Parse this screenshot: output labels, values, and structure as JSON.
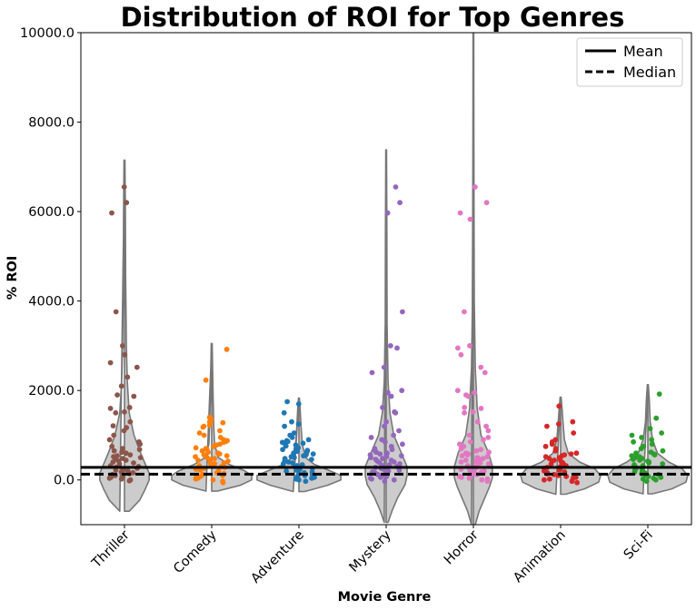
{
  "chart_data": {
    "type": "violin",
    "title": "Distribution of ROI for Top Genres",
    "xlabel": "Movie Genre",
    "ylabel": "% ROI",
    "ylim": [
      -1000,
      10000
    ],
    "yticks": [
      0,
      2000,
      4000,
      6000,
      8000,
      10000
    ],
    "ytick_labels": [
      "0.0",
      "2000.0",
      "4000.0",
      "6000.0",
      "8000.0",
      "10000.0"
    ],
    "categories": [
      "Thriller",
      "Comedy",
      "Adventure",
      "Mystery",
      "Horror",
      "Animation",
      "Sci-Fi"
    ],
    "reference_lines": [
      {
        "name": "Mean",
        "value": 280,
        "style": "solid",
        "color": "#000000"
      },
      {
        "name": "Median",
        "value": 130,
        "style": "dashed",
        "color": "#000000"
      }
    ],
    "legend_position": "top-right",
    "series": [
      {
        "category": "Thriller",
        "color": "#8c564b",
        "violin": {
          "min": -700,
          "max": 7150,
          "shape": [
            [
              -700,
              0.05
            ],
            [
              -450,
              0.16
            ],
            [
              -200,
              0.22
            ],
            [
              0,
              0.26
            ],
            [
              150,
              0.26
            ],
            [
              350,
              0.22
            ],
            [
              600,
              0.17
            ],
            [
              1000,
              0.1
            ],
            [
              1500,
              0.05
            ],
            [
              2200,
              0.03
            ],
            [
              3000,
              0.02
            ],
            [
              4500,
              0.012
            ],
            [
              6000,
              0.01
            ],
            [
              7150,
              0.005
            ]
          ]
        },
        "points": [
          6550,
          6200,
          5970,
          3760,
          3000,
          2800,
          2620,
          2520,
          2300,
          2100,
          1900,
          1870,
          1620,
          1600,
          1520,
          1500,
          1300,
          1210,
          1170,
          1100,
          1000,
          900,
          850,
          800,
          750,
          700,
          680,
          650,
          620,
          600,
          560,
          540,
          520,
          500,
          480,
          460,
          440,
          420,
          400,
          380,
          360,
          340,
          320,
          300,
          280,
          260,
          240,
          220,
          200,
          180,
          160,
          140,
          120,
          100,
          80,
          60,
          40,
          20,
          0,
          -20
        ]
      },
      {
        "category": "Comedy",
        "color": "#ff7f0e",
        "violin": {
          "min": -250,
          "max": 3050,
          "shape": [
            [
              -250,
              0.06
            ],
            [
              -120,
              0.3
            ],
            [
              0,
              0.42
            ],
            [
              100,
              0.42
            ],
            [
              200,
              0.35
            ],
            [
              350,
              0.18
            ],
            [
              500,
              0.07
            ],
            [
              800,
              0.03
            ],
            [
              1200,
              0.022
            ],
            [
              1800,
              0.015
            ],
            [
              2500,
              0.01
            ],
            [
              3050,
              0.005
            ]
          ]
        },
        "points": [
          2920,
          2230,
          1400,
          1350,
          1300,
          1280,
          1250,
          1220,
          1200,
          1180,
          1100,
          1050,
          1000,
          950,
          900,
          880,
          860,
          840,
          800,
          780,
          750,
          720,
          700,
          680,
          650,
          620,
          600,
          580,
          560,
          540,
          520,
          500,
          480,
          460,
          440,
          420,
          400,
          380,
          360,
          340,
          320,
          300,
          280,
          260,
          240,
          220,
          200,
          180,
          160,
          140,
          120,
          100,
          80,
          60,
          40,
          20,
          0,
          -30,
          -60
        ]
      },
      {
        "category": "Adventure",
        "color": "#1f77b4",
        "violin": {
          "min": -260,
          "max": 1830,
          "shape": [
            [
              -260,
              0.06
            ],
            [
              -120,
              0.3
            ],
            [
              0,
              0.44
            ],
            [
              100,
              0.44
            ],
            [
              200,
              0.33
            ],
            [
              350,
              0.16
            ],
            [
              500,
              0.07
            ],
            [
              800,
              0.035
            ],
            [
              1200,
              0.022
            ],
            [
              1600,
              0.012
            ],
            [
              1830,
              0.005
            ]
          ]
        },
        "points": [
          1750,
          1700,
          1500,
          1300,
          1250,
          1200,
          1050,
          1000,
          950,
          900,
          880,
          860,
          840,
          820,
          800,
          780,
          760,
          720,
          700,
          680,
          660,
          640,
          620,
          600,
          580,
          560,
          540,
          520,
          500,
          480,
          460,
          440,
          420,
          400,
          380,
          360,
          340,
          320,
          300,
          280,
          260,
          240,
          220,
          200,
          180,
          160,
          140,
          120,
          100,
          80,
          60,
          40,
          20,
          0,
          -30
        ]
      },
      {
        "category": "Mystery",
        "color": "#9467bd",
        "violin": {
          "min": -950,
          "max": 7380,
          "shape": [
            [
              -950,
              0.02
            ],
            [
              -700,
              0.06
            ],
            [
              -400,
              0.12
            ],
            [
              -100,
              0.2
            ],
            [
              100,
              0.22
            ],
            [
              300,
              0.22
            ],
            [
              600,
              0.16
            ],
            [
              1000,
              0.08
            ],
            [
              1500,
              0.04
            ],
            [
              2200,
              0.02
            ],
            [
              3500,
              0.01
            ],
            [
              5500,
              0.008
            ],
            [
              7380,
              0.004
            ]
          ]
        },
        "points": [
          6550,
          6200,
          5970,
          3760,
          3000,
          2950,
          2520,
          2400,
          2000,
          1950,
          1870,
          1620,
          1520,
          1500,
          1300,
          1200,
          1100,
          1000,
          950,
          900,
          850,
          800,
          750,
          700,
          680,
          650,
          620,
          600,
          580,
          560,
          540,
          520,
          500,
          480,
          460,
          440,
          420,
          400,
          380,
          360,
          340,
          320,
          300,
          280,
          260,
          240,
          220,
          200,
          180,
          160,
          140,
          120,
          100,
          80,
          60,
          40,
          20,
          0,
          -30
        ]
      },
      {
        "category": "Horror",
        "color": "#e377c2",
        "violin": {
          "min": -1000,
          "max": 10000,
          "shape": [
            [
              -1000,
              0.02
            ],
            [
              -700,
              0.06
            ],
            [
              -400,
              0.12
            ],
            [
              -150,
              0.17
            ],
            [
              50,
              0.2
            ],
            [
              300,
              0.2
            ],
            [
              600,
              0.16
            ],
            [
              1000,
              0.08
            ],
            [
              1600,
              0.04
            ],
            [
              2500,
              0.02
            ],
            [
              4000,
              0.01
            ],
            [
              6000,
              0.007
            ],
            [
              8000,
              0.005
            ],
            [
              10000,
              0.004
            ]
          ]
        },
        "points": [
          6550,
          6200,
          5970,
          5830,
          3760,
          3000,
          2950,
          2800,
          2520,
          2400,
          2000,
          1950,
          1900,
          1870,
          1620,
          1600,
          1520,
          1500,
          1300,
          1200,
          1100,
          1000,
          950,
          900,
          850,
          800,
          750,
          700,
          680,
          650,
          620,
          600,
          580,
          560,
          540,
          520,
          500,
          480,
          460,
          440,
          420,
          400,
          380,
          360,
          340,
          320,
          300,
          280,
          260,
          240,
          220,
          200,
          180,
          160,
          140,
          120,
          100,
          80,
          60,
          40,
          20,
          0,
          -30
        ]
      },
      {
        "category": "Animation",
        "color": "#d62728",
        "violin": {
          "min": -320,
          "max": 1850,
          "shape": [
            [
              -320,
              0.05
            ],
            [
              -200,
              0.25
            ],
            [
              -50,
              0.4
            ],
            [
              100,
              0.42
            ],
            [
              250,
              0.36
            ],
            [
              400,
              0.2
            ],
            [
              600,
              0.08
            ],
            [
              900,
              0.04
            ],
            [
              1300,
              0.025
            ],
            [
              1600,
              0.015
            ],
            [
              1850,
              0.005
            ]
          ]
        },
        "points": [
          1650,
          1300,
          1250,
          1200,
          1050,
          900,
          850,
          800,
          750,
          700,
          650,
          600,
          580,
          560,
          540,
          520,
          500,
          480,
          460,
          440,
          420,
          400,
          380,
          360,
          340,
          320,
          300,
          280,
          260,
          240,
          220,
          200,
          180,
          160,
          140,
          120,
          100,
          80,
          60,
          40,
          20,
          0,
          -30,
          -60
        ]
      },
      {
        "category": "Sci-Fi",
        "color": "#2ca02c",
        "violin": {
          "min": -310,
          "max": 2130,
          "shape": [
            [
              -310,
              0.05
            ],
            [
              -200,
              0.25
            ],
            [
              -50,
              0.4
            ],
            [
              100,
              0.42
            ],
            [
              250,
              0.36
            ],
            [
              400,
              0.22
            ],
            [
              600,
              0.1
            ],
            [
              900,
              0.05
            ],
            [
              1300,
              0.025
            ],
            [
              1800,
              0.015
            ],
            [
              2130,
              0.005
            ]
          ]
        },
        "points": [
          1920,
          1380,
          1150,
          1050,
          1000,
          950,
          900,
          850,
          800,
          750,
          700,
          650,
          620,
          600,
          580,
          560,
          540,
          520,
          500,
          480,
          460,
          440,
          420,
          400,
          380,
          360,
          340,
          320,
          300,
          280,
          260,
          240,
          220,
          200,
          180,
          160,
          140,
          120,
          100,
          80,
          60,
          40,
          20,
          0,
          -30
        ]
      }
    ],
    "legend": [
      {
        "name": "Mean",
        "style": "solid"
      },
      {
        "name": "Median",
        "style": "dashed"
      }
    ]
  }
}
